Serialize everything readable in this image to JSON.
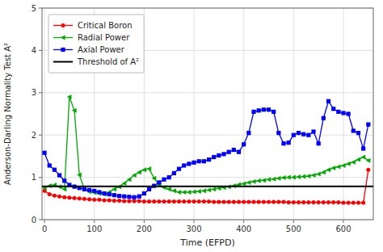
{
  "chart_data": {
    "type": "line",
    "xlabel": "Time (EFPD)",
    "ylabel": "Anderson-Darling Normality Test A²",
    "x": [
      0,
      10,
      20,
      30,
      40,
      50,
      60,
      70,
      80,
      90,
      100,
      110,
      120,
      130,
      140,
      150,
      160,
      170,
      180,
      190,
      200,
      210,
      220,
      230,
      240,
      250,
      260,
      270,
      280,
      290,
      300,
      310,
      320,
      330,
      340,
      350,
      360,
      370,
      380,
      390,
      400,
      410,
      420,
      430,
      440,
      450,
      460,
      470,
      480,
      490,
      500,
      510,
      520,
      530,
      540,
      550,
      560,
      570,
      580,
      590,
      600,
      610,
      620,
      630,
      640,
      650
    ],
    "series": [
      {
        "name": "Critical Boron",
        "color": "#ff0000",
        "marker": "circle",
        "values": [
          0.68,
          0.6,
          0.57,
          0.55,
          0.53,
          0.52,
          0.51,
          0.5,
          0.49,
          0.48,
          0.47,
          0.47,
          0.46,
          0.46,
          0.45,
          0.45,
          0.44,
          0.44,
          0.44,
          0.44,
          0.43,
          0.43,
          0.43,
          0.43,
          0.43,
          0.43,
          0.43,
          0.43,
          0.43,
          0.43,
          0.43,
          0.43,
          0.43,
          0.43,
          0.42,
          0.42,
          0.42,
          0.42,
          0.42,
          0.42,
          0.42,
          0.42,
          0.42,
          0.42,
          0.42,
          0.42,
          0.42,
          0.42,
          0.42,
          0.41,
          0.41,
          0.41,
          0.41,
          0.41,
          0.41,
          0.41,
          0.41,
          0.41,
          0.41,
          0.41,
          0.4,
          0.4,
          0.4,
          0.4,
          0.4,
          1.18
        ]
      },
      {
        "name": "Radial Power",
        "color": "#00aa00",
        "marker": "triangle-left",
        "values": [
          0.75,
          0.8,
          0.82,
          0.78,
          0.72,
          2.9,
          2.58,
          1.06,
          0.72,
          0.66,
          0.64,
          0.62,
          0.6,
          0.65,
          0.72,
          0.78,
          0.86,
          0.95,
          1.05,
          1.12,
          1.18,
          1.2,
          0.98,
          0.82,
          0.76,
          0.72,
          0.68,
          0.65,
          0.65,
          0.65,
          0.66,
          0.67,
          0.68,
          0.7,
          0.72,
          0.74,
          0.76,
          0.78,
          0.8,
          0.83,
          0.85,
          0.88,
          0.9,
          0.92,
          0.93,
          0.95,
          0.96,
          0.98,
          0.99,
          1.0,
          1.0,
          1.01,
          1.02,
          1.03,
          1.05,
          1.08,
          1.12,
          1.18,
          1.22,
          1.25,
          1.28,
          1.32,
          1.36,
          1.42,
          1.48,
          1.4
        ]
      },
      {
        "name": "Axial Power",
        "color": "#0000ff",
        "marker": "square",
        "values": [
          1.58,
          1.28,
          1.18,
          1.05,
          0.92,
          0.82,
          0.78,
          0.75,
          0.72,
          0.7,
          0.68,
          0.65,
          0.62,
          0.6,
          0.58,
          0.56,
          0.55,
          0.54,
          0.53,
          0.55,
          0.62,
          0.72,
          0.8,
          0.88,
          0.95,
          1.0,
          1.1,
          1.2,
          1.28,
          1.32,
          1.35,
          1.38,
          1.38,
          1.42,
          1.48,
          1.52,
          1.55,
          1.6,
          1.65,
          1.6,
          1.78,
          2.05,
          2.55,
          2.58,
          2.6,
          2.6,
          2.55,
          2.05,
          1.8,
          1.82,
          2.0,
          2.05,
          2.02,
          2.0,
          2.08,
          1.8,
          2.4,
          2.8,
          2.62,
          2.55,
          2.52,
          2.5,
          2.1,
          2.05,
          1.68,
          2.25
        ]
      },
      {
        "name": "Threshold of A²",
        "color": "#000000",
        "type": "hline",
        "value": 0.787
      }
    ],
    "xlim": [
      -5,
      660
    ],
    "ylim": [
      0,
      5
    ],
    "xticks": [
      0,
      100,
      200,
      300,
      400,
      500,
      600
    ],
    "yticks": [
      0,
      1,
      2,
      3,
      4,
      5
    ],
    "grid": true,
    "legend": "upper left"
  }
}
